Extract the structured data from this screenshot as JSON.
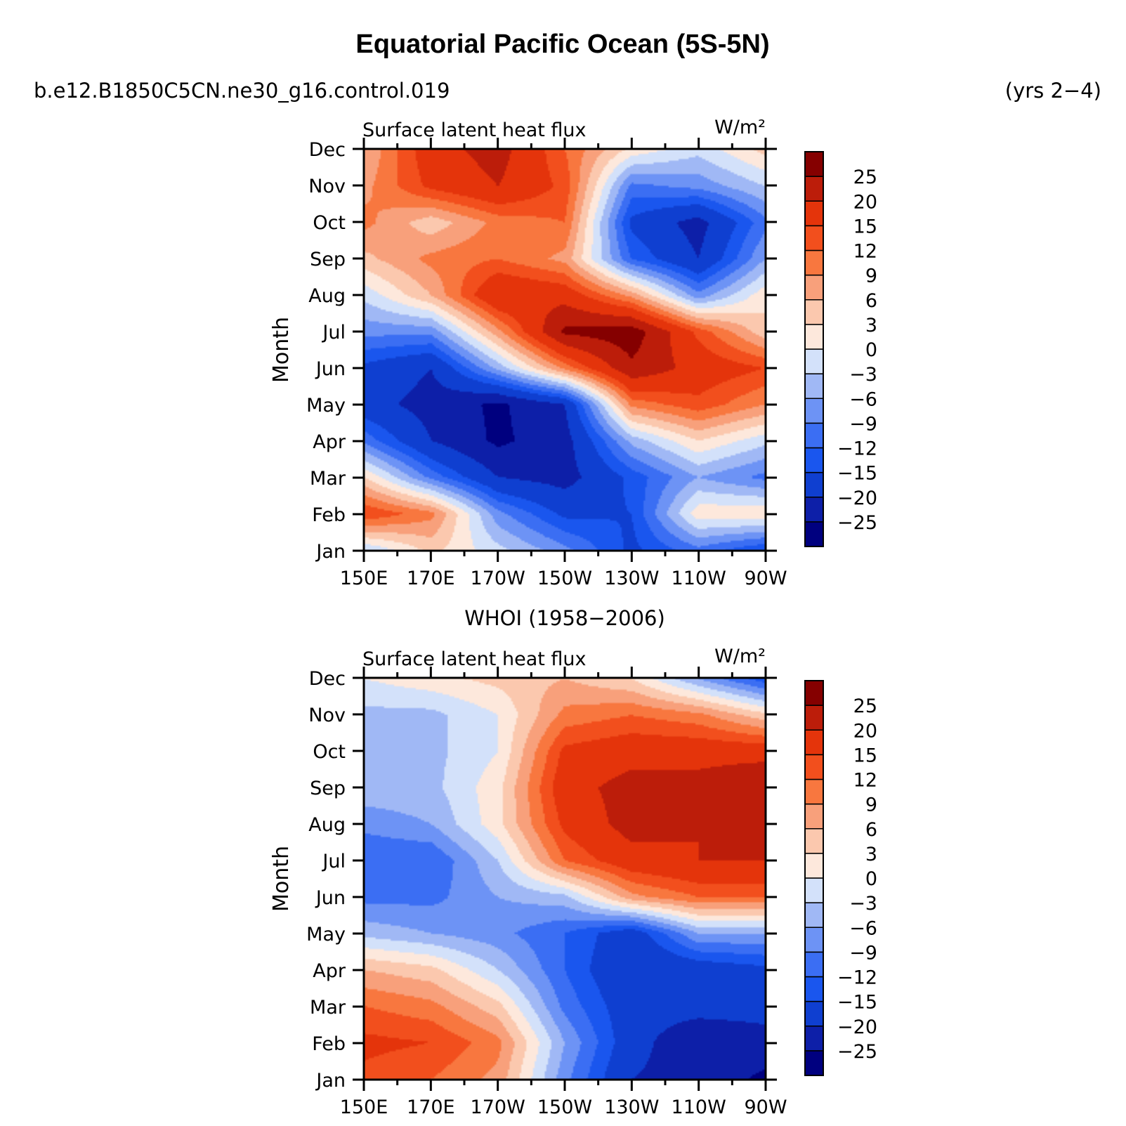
{
  "page": {
    "title": "Equatorial Pacific Ocean (5S-5N)",
    "case_name": "b.e12.B1850C5CN.ne30_g16.control.019",
    "years": "(yrs 2−4)"
  },
  "chart_data": [
    {
      "type": "heatmap",
      "panel_title": "",
      "title": "Surface latent heat flux",
      "units": "W/m²",
      "xlabel": "",
      "ylabel": "Month",
      "x_tick_labels": [
        "150E",
        "170E",
        "170W",
        "150W",
        "130W",
        "110W",
        "90W"
      ],
      "x_ticks_deg_east": [
        150,
        170,
        190,
        210,
        230,
        250,
        270
      ],
      "x_range_deg_east": [
        150,
        270
      ],
      "y_tick_labels": [
        "Jan",
        "Feb",
        "Mar",
        "Apr",
        "May",
        "Jun",
        "Jul",
        "Aug",
        "Sep",
        "Oct",
        "Nov",
        "Dec"
      ],
      "contour_levels": [
        -25,
        -20,
        -15,
        -12,
        -9,
        -6,
        -3,
        0,
        3,
        6,
        9,
        12,
        15,
        20,
        25
      ],
      "colorbar_labels": [
        "25",
        "20",
        "15",
        "12",
        "9",
        "6",
        "3",
        "0",
        "−3",
        "−6",
        "−9",
        "−12",
        "−15",
        "−20",
        "−25"
      ],
      "colors": [
        "#00007f",
        "#0d1fa8",
        "#0f3fd0",
        "#1a56ee",
        "#3b6ef3",
        "#6d93f5",
        "#a0b8f5",
        "#d3e1fa",
        "#fde8dc",
        "#fbc8ae",
        "#f8a07b",
        "#f8773f",
        "#f24f1d",
        "#e4340b",
        "#bc1d0a",
        "#850000"
      ],
      "x": [
        150,
        170,
        190,
        210,
        230,
        250,
        270
      ],
      "y": [
        "Jan",
        "Feb",
        "Mar",
        "Apr",
        "May",
        "Jun",
        "Jul",
        "Aug",
        "Sep",
        "Oct",
        "Nov",
        "Dec"
      ],
      "z": [
        [
          -3,
          4,
          -2,
          -8,
          -16,
          -10,
          -15
        ],
        [
          15,
          10,
          -8,
          -16,
          -15,
          2,
          3
        ],
        [
          3,
          -10,
          -20,
          -22,
          -14,
          -6,
          -10
        ],
        [
          -10,
          -20,
          -26,
          -22,
          -5,
          3,
          -2
        ],
        [
          -18,
          -22,
          -26,
          -20,
          10,
          14,
          9
        ],
        [
          -16,
          -20,
          -5,
          10,
          24,
          18,
          15
        ],
        [
          -8,
          -8,
          8,
          26,
          28,
          14,
          4
        ],
        [
          -2,
          6,
          20,
          18,
          8,
          -8,
          2
        ],
        [
          5,
          10,
          12,
          8,
          -12,
          -20,
          -6
        ],
        [
          10,
          4,
          10,
          12,
          -16,
          -22,
          -10
        ],
        [
          8,
          16,
          20,
          14,
          -10,
          -8,
          -3
        ],
        [
          6,
          18,
          22,
          12,
          2,
          -2,
          4
        ]
      ],
      "colorbar_side": "right"
    },
    {
      "type": "heatmap",
      "panel_title": "WHOI (1958−2006)",
      "title": "Surface latent heat flux",
      "units": "W/m²",
      "xlabel": "",
      "ylabel": "Month",
      "x_tick_labels": [
        "150E",
        "170E",
        "170W",
        "150W",
        "130W",
        "110W",
        "90W"
      ],
      "x_ticks_deg_east": [
        150,
        170,
        190,
        210,
        230,
        250,
        270
      ],
      "x_range_deg_east": [
        150,
        270
      ],
      "y_tick_labels": [
        "Jan",
        "Feb",
        "Mar",
        "Apr",
        "May",
        "Jun",
        "Jul",
        "Aug",
        "Sep",
        "Oct",
        "Nov",
        "Dec"
      ],
      "contour_levels": [
        -25,
        -20,
        -15,
        -12,
        -9,
        -6,
        -3,
        0,
        3,
        6,
        9,
        12,
        15,
        20,
        25
      ],
      "colorbar_labels": [
        "25",
        "20",
        "15",
        "12",
        "9",
        "6",
        "3",
        "0",
        "−3",
        "−6",
        "−9",
        "−12",
        "−15",
        "−20",
        "−25"
      ],
      "colors": [
        "#00007f",
        "#0d1fa8",
        "#0f3fd0",
        "#1a56ee",
        "#3b6ef3",
        "#6d93f5",
        "#a0b8f5",
        "#d3e1fa",
        "#fde8dc",
        "#fbc8ae",
        "#f8a07b",
        "#f8773f",
        "#f24f1d",
        "#e4340b",
        "#bc1d0a",
        "#850000"
      ],
      "x": [
        150,
        170,
        190,
        210,
        230,
        250,
        270
      ],
      "y": [
        "Jan",
        "Feb",
        "Mar",
        "Apr",
        "May",
        "Jun",
        "Jul",
        "Aug",
        "Sep",
        "Oct",
        "Nov",
        "Dec"
      ],
      "z": [
        [
          14,
          12,
          8,
          -8,
          -20,
          -22,
          -26
        ],
        [
          16,
          15,
          10,
          -6,
          -18,
          -24,
          -22
        ],
        [
          12,
          10,
          4,
          -10,
          -18,
          -18,
          -18
        ],
        [
          6,
          4,
          -3,
          -12,
          -20,
          -18,
          -16
        ],
        [
          -4,
          -6,
          -8,
          -12,
          -18,
          -6,
          -6
        ],
        [
          -10,
          -10,
          -6,
          -4,
          8,
          12,
          12
        ],
        [
          -12,
          -12,
          -3,
          12,
          18,
          20,
          20
        ],
        [
          -8,
          -6,
          2,
          16,
          22,
          20,
          22
        ],
        [
          -4,
          -4,
          2,
          18,
          22,
          22,
          25
        ],
        [
          -4,
          -4,
          0,
          16,
          18,
          18,
          18
        ],
        [
          -4,
          -4,
          0,
          10,
          12,
          10,
          4
        ],
        [
          0,
          2,
          4,
          6,
          3,
          -6,
          -14
        ]
      ],
      "colorbar_side": "right"
    }
  ]
}
